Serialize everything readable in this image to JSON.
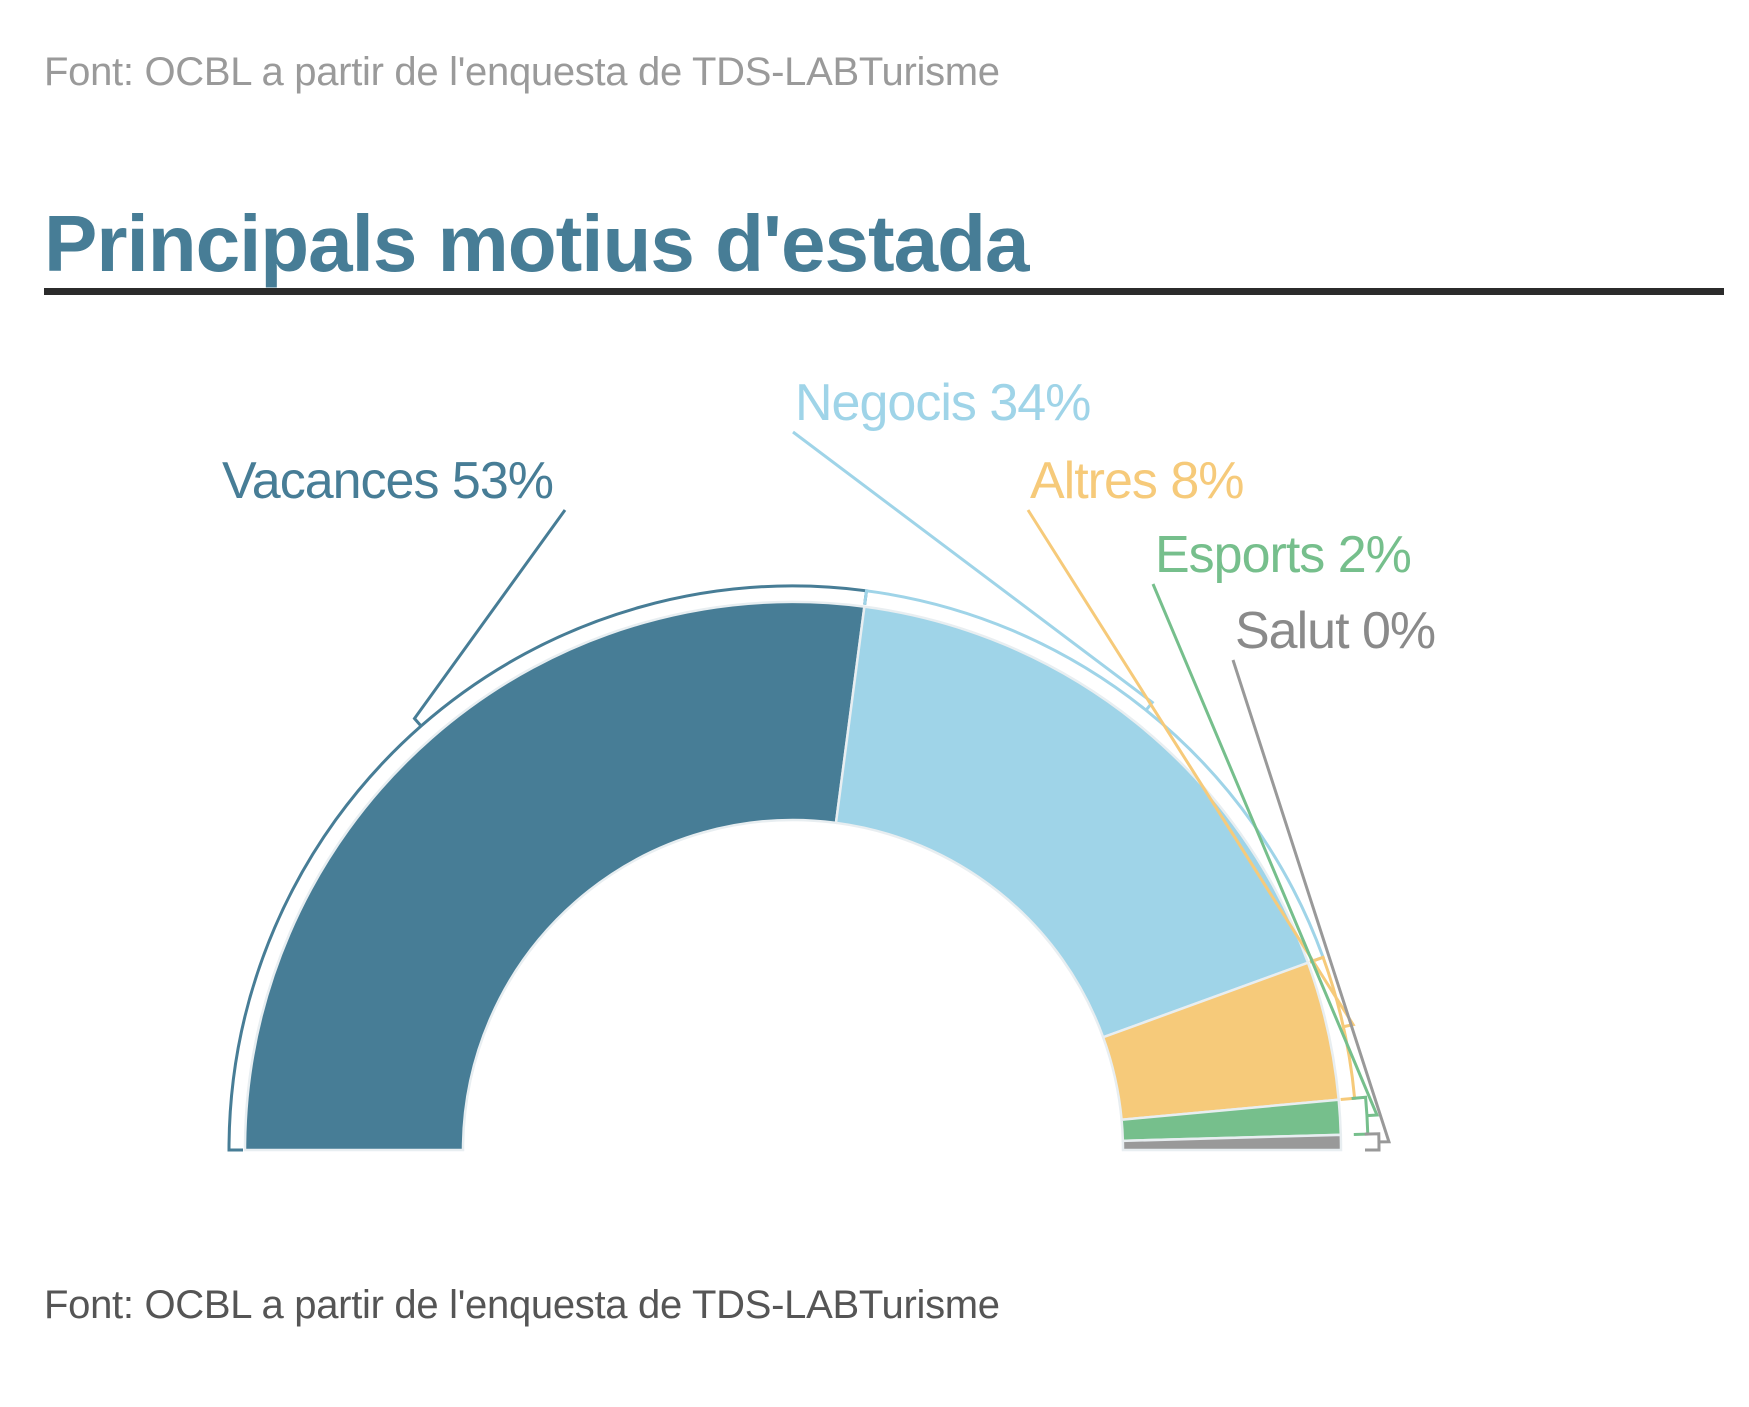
{
  "header": {
    "source_top": "Font: OCBL a partir de l'enquesta de TDS-LABTurisme",
    "title": "Principals motius d'estada"
  },
  "footer": {
    "source_bottom": "Font: OCBL a partir de l'enquesta de TDS-LABTurisme"
  },
  "chart_data": {
    "type": "pie",
    "variant": "semi-donut",
    "title": "Principals motius d'estada",
    "unit": "%",
    "categories": [
      "Vacances",
      "Negocis",
      "Altres",
      "Esports",
      "Salut"
    ],
    "values": [
      53,
      34,
      8,
      2,
      0
    ],
    "labels": [
      "Vacances 53%",
      "Negocis 34%",
      "Altres 8%",
      "Esports 2%",
      "Salut 0%"
    ],
    "colors": [
      "#477d96",
      "#9fd4e8",
      "#f6ca7a",
      "#76bf8c",
      "#999999"
    ],
    "legend": "inline labels with brackets"
  }
}
